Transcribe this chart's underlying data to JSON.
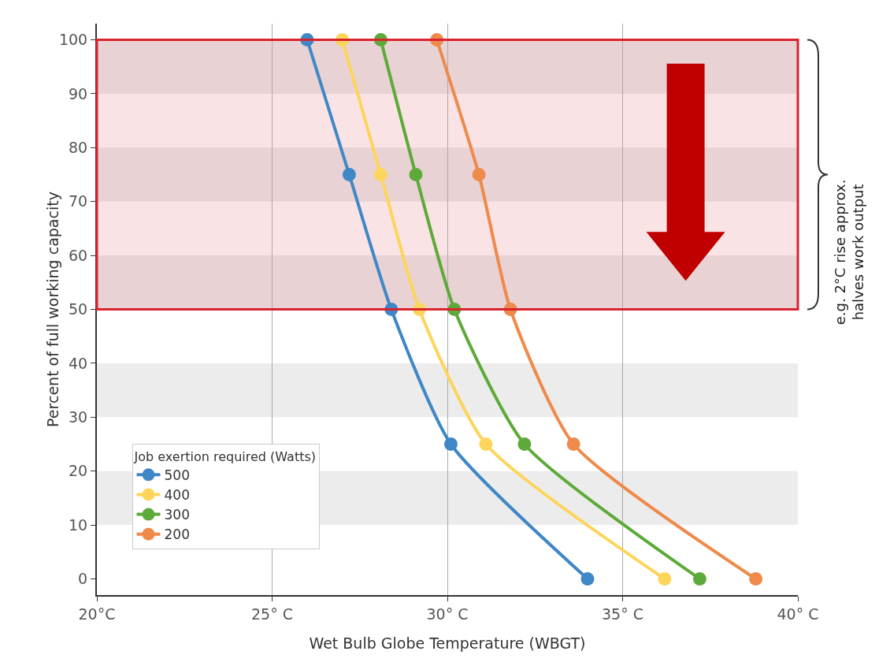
{
  "chart_data": {
    "type": "line",
    "xlabel": "Wet Bulb Globe Temperature (WBGT)",
    "ylabel": "Percent of full working capacity",
    "legend_title": "Job exertion required (Watts)",
    "series": [
      {
        "name": "500",
        "color": "#3f87c6",
        "x": [
          26.0,
          27.2,
          28.4,
          30.1,
          34.0
        ],
        "values": [
          100,
          75,
          50,
          25,
          0
        ]
      },
      {
        "name": "400",
        "color": "#fdd55a",
        "x": [
          27.0,
          28.1,
          29.2,
          31.1,
          36.2
        ],
        "values": [
          100,
          75,
          50,
          25,
          0
        ]
      },
      {
        "name": "300",
        "color": "#5daa3a",
        "x": [
          28.1,
          29.1,
          30.2,
          32.2,
          37.2
        ],
        "values": [
          100,
          75,
          50,
          25,
          0
        ]
      },
      {
        "name": "200",
        "color": "#ee8a4a",
        "x": [
          29.7,
          30.9,
          31.8,
          33.6,
          38.8
        ],
        "values": [
          100,
          75,
          50,
          25,
          0
        ]
      }
    ],
    "xlim": [
      20,
      40
    ],
    "xticks": [
      {
        "value": 20,
        "label": "20°C"
      },
      {
        "value": 25,
        "label": "25° C"
      },
      {
        "value": 30,
        "label": "30° C"
      },
      {
        "value": 35,
        "label": "35° C"
      },
      {
        "value": 40,
        "label": "40° C"
      }
    ],
    "ylim": [
      -3,
      103
    ],
    "yticks": [
      0,
      10,
      20,
      30,
      40,
      50,
      60,
      70,
      80,
      90,
      100
    ],
    "bands": [
      {
        "axis": "y",
        "from": 10,
        "to": 20,
        "color": "#ececec"
      },
      {
        "axis": "y",
        "from": 30,
        "to": 40,
        "color": "#ececec"
      },
      {
        "axis": "y",
        "from": 50,
        "to": 60,
        "color": "#ececec"
      },
      {
        "axis": "y",
        "from": 70,
        "to": 80,
        "color": "#ececec"
      },
      {
        "axis": "y",
        "from": 90,
        "to": 100,
        "color": "#ececec"
      },
      {
        "axis": "y",
        "from": 50,
        "to": 100,
        "color": "#d9232e"
      }
    ],
    "annotations": [
      "e.g. 2°C rise approx. halves work output"
    ],
    "grid": "x",
    "legend": "bottom left",
    "marker": "circle",
    "line_style": "solid"
  }
}
